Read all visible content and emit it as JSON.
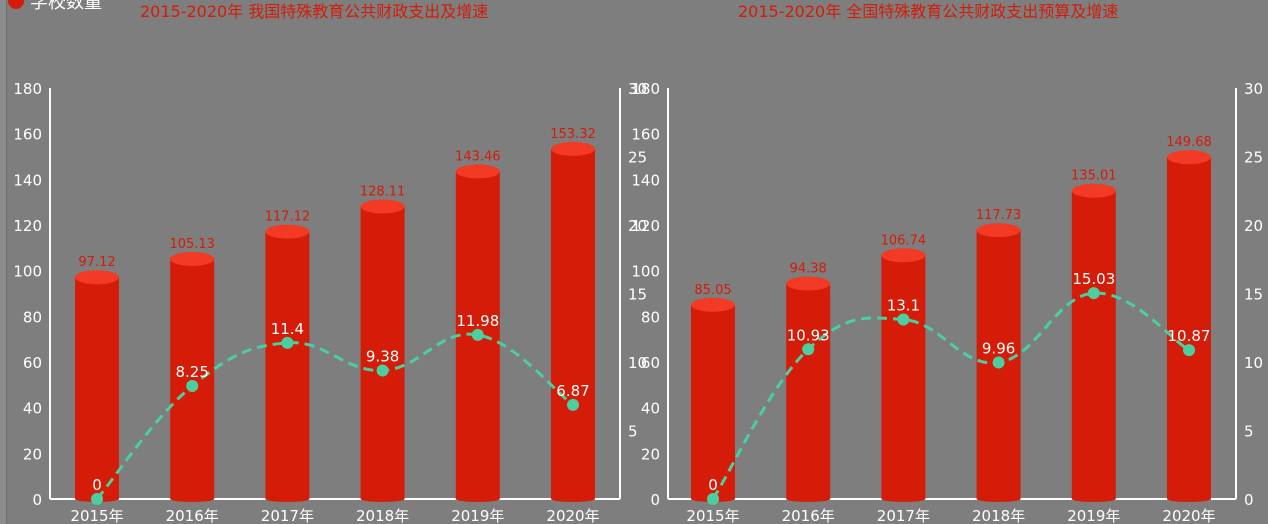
{
  "colors": {
    "bar_side": "#d41c08",
    "bar_top": "#f33a24",
    "bar_label": "#d41c08",
    "line": "#4ccfa0",
    "axis": "#ffffff",
    "title": "#d41c08",
    "background": "#7e7e7e"
  },
  "legend": {
    "label": "学校数量",
    "icon": "red-dot-icon"
  },
  "chart_data": [
    {
      "type": "bar",
      "title": "2015-2020年 我国特殊教育公共财政支出及增速",
      "categories": [
        "2015年",
        "2016年",
        "2017年",
        "2018年",
        "2019年",
        "2020年"
      ],
      "series": [
        {
          "type": "bar",
          "axis": "left",
          "values": [
            97.12,
            105.13,
            117.12,
            128.11,
            143.46,
            153.32
          ]
        },
        {
          "type": "line",
          "axis": "right",
          "values": [
            0,
            8.25,
            11.4,
            9.38,
            11.98,
            6.87
          ]
        }
      ],
      "ylim": [
        0,
        180
      ],
      "y_ticks": [
        0,
        20,
        40,
        60,
        80,
        100,
        120,
        140,
        160,
        180
      ],
      "y2lim": [
        0,
        30
      ],
      "y2_ticks": [
        5,
        10,
        15,
        20,
        25,
        30
      ],
      "grid": false,
      "legend_position": "top-left"
    },
    {
      "type": "bar",
      "title": "2015-2020年 全国特殊教育公共财政支出预算及增速",
      "categories": [
        "2015年",
        "2016年",
        "2017年",
        "2018年",
        "2019年",
        "2020年"
      ],
      "series": [
        {
          "type": "bar",
          "axis": "left",
          "values": [
            85.05,
            94.38,
            106.74,
            117.73,
            135.01,
            149.68
          ]
        },
        {
          "type": "line",
          "axis": "right",
          "values": [
            0,
            10.93,
            13.1,
            9.96,
            15.03,
            10.87
          ]
        }
      ],
      "ylim": [
        0,
        180
      ],
      "y_ticks": [
        0,
        20,
        40,
        60,
        80,
        100,
        120,
        140,
        160,
        180
      ],
      "y2lim": [
        0,
        30
      ],
      "y2_ticks": [
        0,
        5,
        10,
        15,
        20,
        25,
        30
      ],
      "grid": false
    }
  ]
}
